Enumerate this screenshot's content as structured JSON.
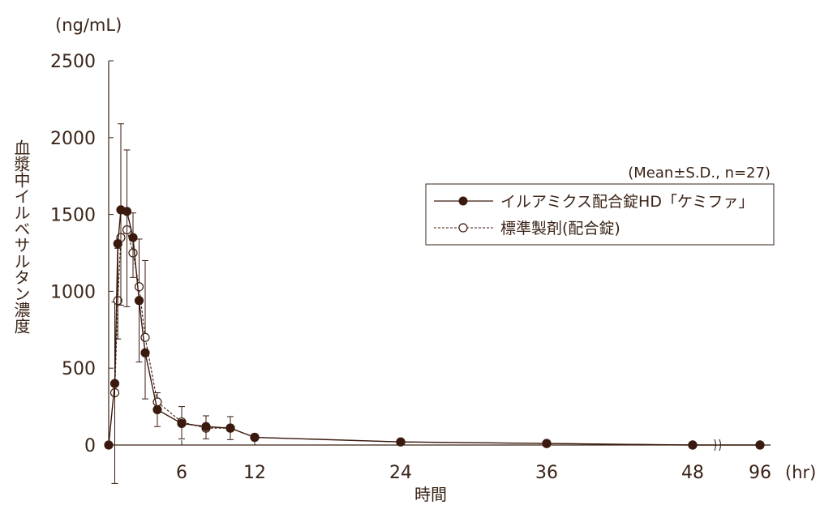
{
  "chart_data": {
    "type": "line",
    "y_unit_label": "(ng/mL)",
    "ylabel": "血漿中イルベサルタン濃度",
    "xlabel": "時間",
    "x_unit_label": "(hr)",
    "annotation": "(Mean±S.D., n=27)",
    "ylim": [
      0,
      2500
    ],
    "y_ticks": [
      0,
      500,
      1000,
      1500,
      2000,
      2500
    ],
    "x_ticks": [
      6,
      12,
      24,
      36,
      48,
      96
    ],
    "x_axis_break_between": [
      48,
      96
    ],
    "grid": false,
    "legend_position": "upper-right",
    "colors": {
      "axis": "#3a2418",
      "series": "#3a1a0e",
      "open_fill": "#ffffff"
    },
    "series": [
      {
        "name": "イルアミクス配合錠HD「ケミファ」",
        "marker": "filled-circle",
        "line": "solid",
        "x": [
          0,
          0.5,
          0.75,
          1,
          1.5,
          2,
          2.5,
          3,
          4,
          6,
          8,
          10,
          12,
          24,
          36,
          48,
          96
        ],
        "y": [
          0,
          400,
          1310,
          1530,
          1520,
          1350,
          940,
          600,
          230,
          140,
          120,
          110,
          50,
          20,
          10,
          0,
          0
        ],
        "sd": [
          null,
          650,
          620,
          620,
          620,
          260,
          400,
          300,
          110,
          100,
          80,
          75,
          null,
          null,
          null,
          null,
          null
        ]
      },
      {
        "name": "標準製剤(配合錠)",
        "marker": "open-circle",
        "line": "dashed",
        "x": [
          0.5,
          0.75,
          1,
          1.5,
          2,
          2.5,
          3,
          4,
          6,
          8,
          10,
          12,
          24,
          36,
          48,
          96
        ],
        "y": [
          340,
          940,
          1350,
          1400,
          1250,
          1030,
          700,
          280,
          150,
          110,
          110,
          50,
          20,
          10,
          0,
          0
        ],
        "sd": [
          590,
          340,
          740,
          520,
          260,
          310,
          500,
          60,
          100,
          80,
          75,
          null,
          null,
          null,
          null,
          null
        ]
      }
    ]
  }
}
